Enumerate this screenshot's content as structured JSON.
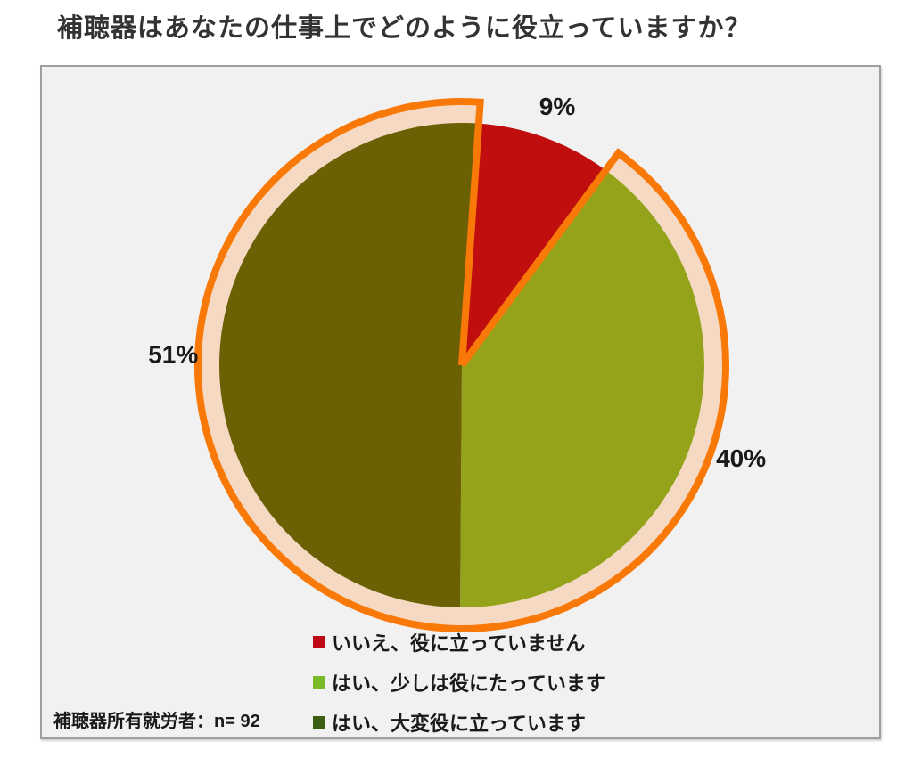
{
  "title": "補聴器はあなたの仕事上でどのように役立っていますか？",
  "chart_data": {
    "type": "pie",
    "title": "補聴器はあなたの仕事上でどのように役立っていますか？",
    "unit": "%",
    "start_angle_deg": 4,
    "slices": [
      {
        "label": "いいえ、役に立っていません",
        "value": 9,
        "display": "9%",
        "color": "#C00D0D",
        "legend_color": "#BE0A14"
      },
      {
        "label": "はい、少しは役にたっています",
        "value": 40,
        "display": "40%",
        "color": "#95A31A",
        "legend_color": "#7ABA28"
      },
      {
        "label": "はい、大変役に立っています",
        "value": 51,
        "display": "51%",
        "color": "#6C6004",
        "legend_color": "#3C5E12"
      }
    ],
    "sample_note": "補聴器所有就労者：n= 92",
    "ring": {
      "fill": "#F6D9C2",
      "stroke": "#F97908",
      "gap_slice_index": 0
    },
    "label_color": "#1a1a1a",
    "legend_position": "bottom-center",
    "plot_background": "#F1F1F2"
  }
}
